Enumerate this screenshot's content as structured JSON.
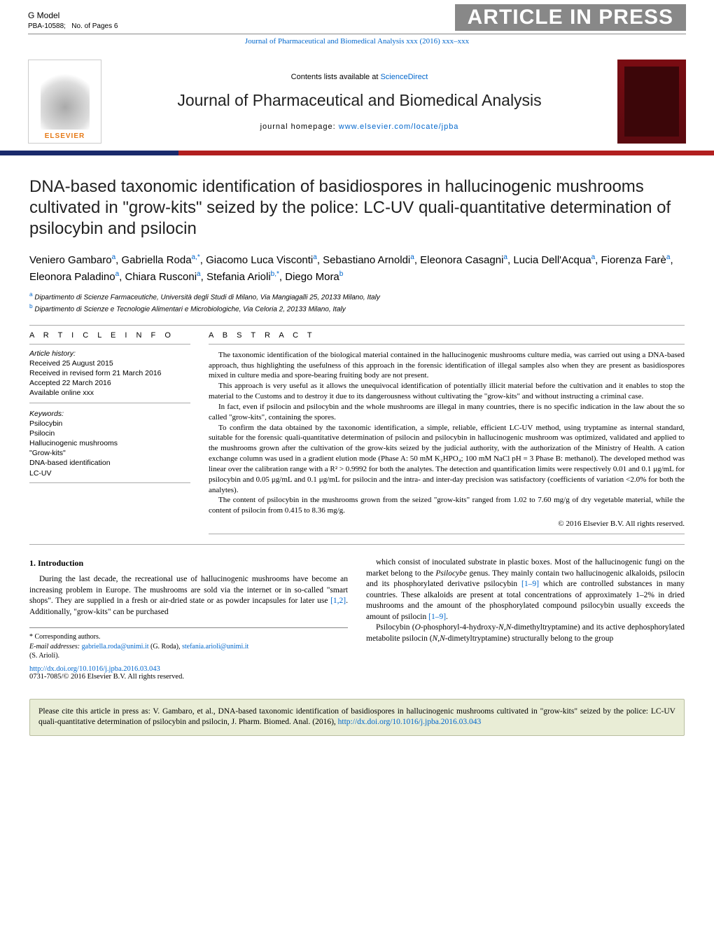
{
  "gmodel": {
    "label": "G Model",
    "ref": "PBA-10588;",
    "pages": "No. of Pages 6"
  },
  "inpress": "ARTICLE IN PRESS",
  "fullref": {
    "text": "Journal of Pharmaceutical and Biomedical Analysis xxx (2016) xxx–xxx"
  },
  "jheader": {
    "contents_prefix": "Contents lists available at ",
    "contents_link": "ScienceDirect",
    "journal": "Journal of Pharmaceutical and Biomedical Analysis",
    "homepage_prefix": "journal homepage: ",
    "homepage_link": "www.elsevier.com/locate/jpba",
    "elsevier": "ELSEVIER"
  },
  "title": "DNA-based taxonomic identification of basidiospores in hallucinogenic mushrooms cultivated in \"grow-kits\" seized by the police: LC-UV quali-quantitative determination of psilocybin and psilocin",
  "authors_html": "Veniero Gambaro<sup>a</sup>, Gabriella Roda<sup>a,*</sup>, Giacomo Luca Visconti<sup>a</sup>, Sebastiano Arnoldi<sup>a</sup>, Eleonora Casagni<sup>a</sup>, Lucia Dell'Acqua<sup>a</sup>, Fiorenza Farè<sup>a</sup>, Eleonora Paladino<sup>a</sup>, Chiara Rusconi<sup>a</sup>, Stefania Arioli<sup>b,*</sup>, Diego Mora<sup>b</sup>",
  "affils": [
    {
      "sup": "a",
      "text": " Dipartimento di Scienze Farmaceutiche, Università degli Studi di Milano, Via Mangiagalli 25, 20133 Milano, Italy"
    },
    {
      "sup": "b",
      "text": " Dipartimento di Scienze e Tecnologie Alimentari e Microbiologiche, Via Celoria 2, 20133 Milano, Italy"
    }
  ],
  "info": {
    "heading": "A R T I C L E   I N F O",
    "history_label": "Article history:",
    "received": "Received 25 August 2015",
    "revised": "Received in revised form 21 March 2016",
    "accepted": "Accepted 22 March 2016",
    "online": "Available online xxx",
    "kw_label": "Keywords:",
    "keywords": [
      "Psilocybin",
      "Psilocin",
      "Hallucinogenic mushrooms",
      "\"Grow-kits\"",
      "DNA-based identification",
      "LC-UV"
    ]
  },
  "abstract": {
    "heading": "A B S T R A C T",
    "paras": [
      "The taxonomic identification of the biological material contained in the hallucinogenic mushrooms culture media, was carried out using a DNA-based approach, thus highlighting the usefulness of this approach in the forensic identification of illegal samples also when they are present as basidiospores mixed in culture media and spore-bearing fruiting body are not present.",
      "This approach is very useful as it allows the unequivocal identification of potentially illicit material before the cultivation and it enables to stop the material to the Customs and to destroy it due to its dangerousness without cultivating the \"grow-kits\" and without instructing a criminal case.",
      "In fact, even if psilocin and psilocybin and the whole mushrooms are illegal in many countries, there is no specific indication in the law about the so called \"grow-kits\", containing the spores.",
      "To confirm the data obtained by the taxonomic identification, a simple, reliable, efficient LC-UV method, using tryptamine as internal standard, suitable for the forensic quali-quantitative determination of psilocin and psilocybin in hallucinogenic mushroom was optimized, validated and applied to the mushrooms grown after the cultivation of the grow-kits seized by the judicial authority, with the authorization of the Ministry of Health. A cation exchange column was used in a gradient elution mode (Phase A: 50 mM K₂HPO₄; 100 mM NaCl pH = 3 Phase B: methanol). The developed method was linear over the calibration range with a R² > 0.9992 for both the analytes. The detection and quantification limits were respectively 0.01 and 0.1 μg/mL for psilocybin and 0.05 μg/mL and 0.1 μg/mL for psilocin and the intra- and inter-day precision was satisfactory (coefficients of variation <2.0% for both the analytes).",
      "The content of psilocybin in the mushrooms grown from the seized \"grow-kits\" ranged from 1.02 to 7.60 mg/g of dry vegetable material, while the content of psilocin from 0.415 to 8.36 mg/g."
    ],
    "copyright": "© 2016 Elsevier B.V. All rights reserved."
  },
  "intro": {
    "heading": "1.  Introduction",
    "left_paras": [
      "During the last decade, the recreational use of hallucinogenic mushrooms have become an increasing problem in Europe. The mushrooms are sold via the internet or in so-called \"smart shops\". They are supplied in a fresh or air-dried state or as powder incapsules for later use [1,2]. Additionally, \"grow-kits\" can be purchased"
    ],
    "right_paras": [
      "which consist of inoculated substrate in plastic boxes. Most of the hallucinogenic fungi on the market belong to the Psilocybe genus. They mainly contain two hallucinogenic alkaloids, psilocin and its phosphorylated derivative psilocybin [1–9] which are controlled substances in many countries. These alkaloids are present at total concentrations of approximately 1–2% in dried mushrooms and the amount of the phosphorylated compound psilocybin usually exceeds the amount of psilocin [1–9].",
      "Psilocybin (O-phosphoryl-4-hydroxy-N,N-dimethyltryptamine) and its active dephosphorylated metabolite psilocin (N,N-dimetyltryptamine) structurally belong to the group"
    ]
  },
  "footnote": {
    "star": "* Corresponding authors.",
    "email_label": "E-mail addresses: ",
    "email1": "gabriella.roda@unimi.it",
    "email1_who": " (G. Roda), ",
    "email2": "stefania.arioli@unimi.it",
    "email2_who": " (S. Arioli)."
  },
  "doi": {
    "url": "http://dx.doi.org/10.1016/j.jpba.2016.03.043",
    "copyline": "0731-7085/© 2016 Elsevier B.V. All rights reserved."
  },
  "cite": {
    "text_prefix": "Please cite this article in press as: V. Gambaro, et al., DNA-based taxonomic identification of basidiospores in hallucinogenic mushrooms cultivated in \"grow-kits\" seized by the police: LC-UV quali-quantitative determination of psilocybin and psilocin, J. Pharm. Biomed. Anal. (2016), ",
    "url": "http://dx.doi.org/10.1016/j.jpba.2016.03.043"
  },
  "colors": {
    "link": "#0066cc",
    "inpress_bg": "#888888",
    "bar_navy": "#1a2a6c",
    "bar_red": "#b21f1f",
    "cite_bg": "#e9edd6",
    "cite_border": "#b9bea0",
    "cover_bg": "#7a0c12",
    "elsevier_orange": "#e67a17"
  }
}
